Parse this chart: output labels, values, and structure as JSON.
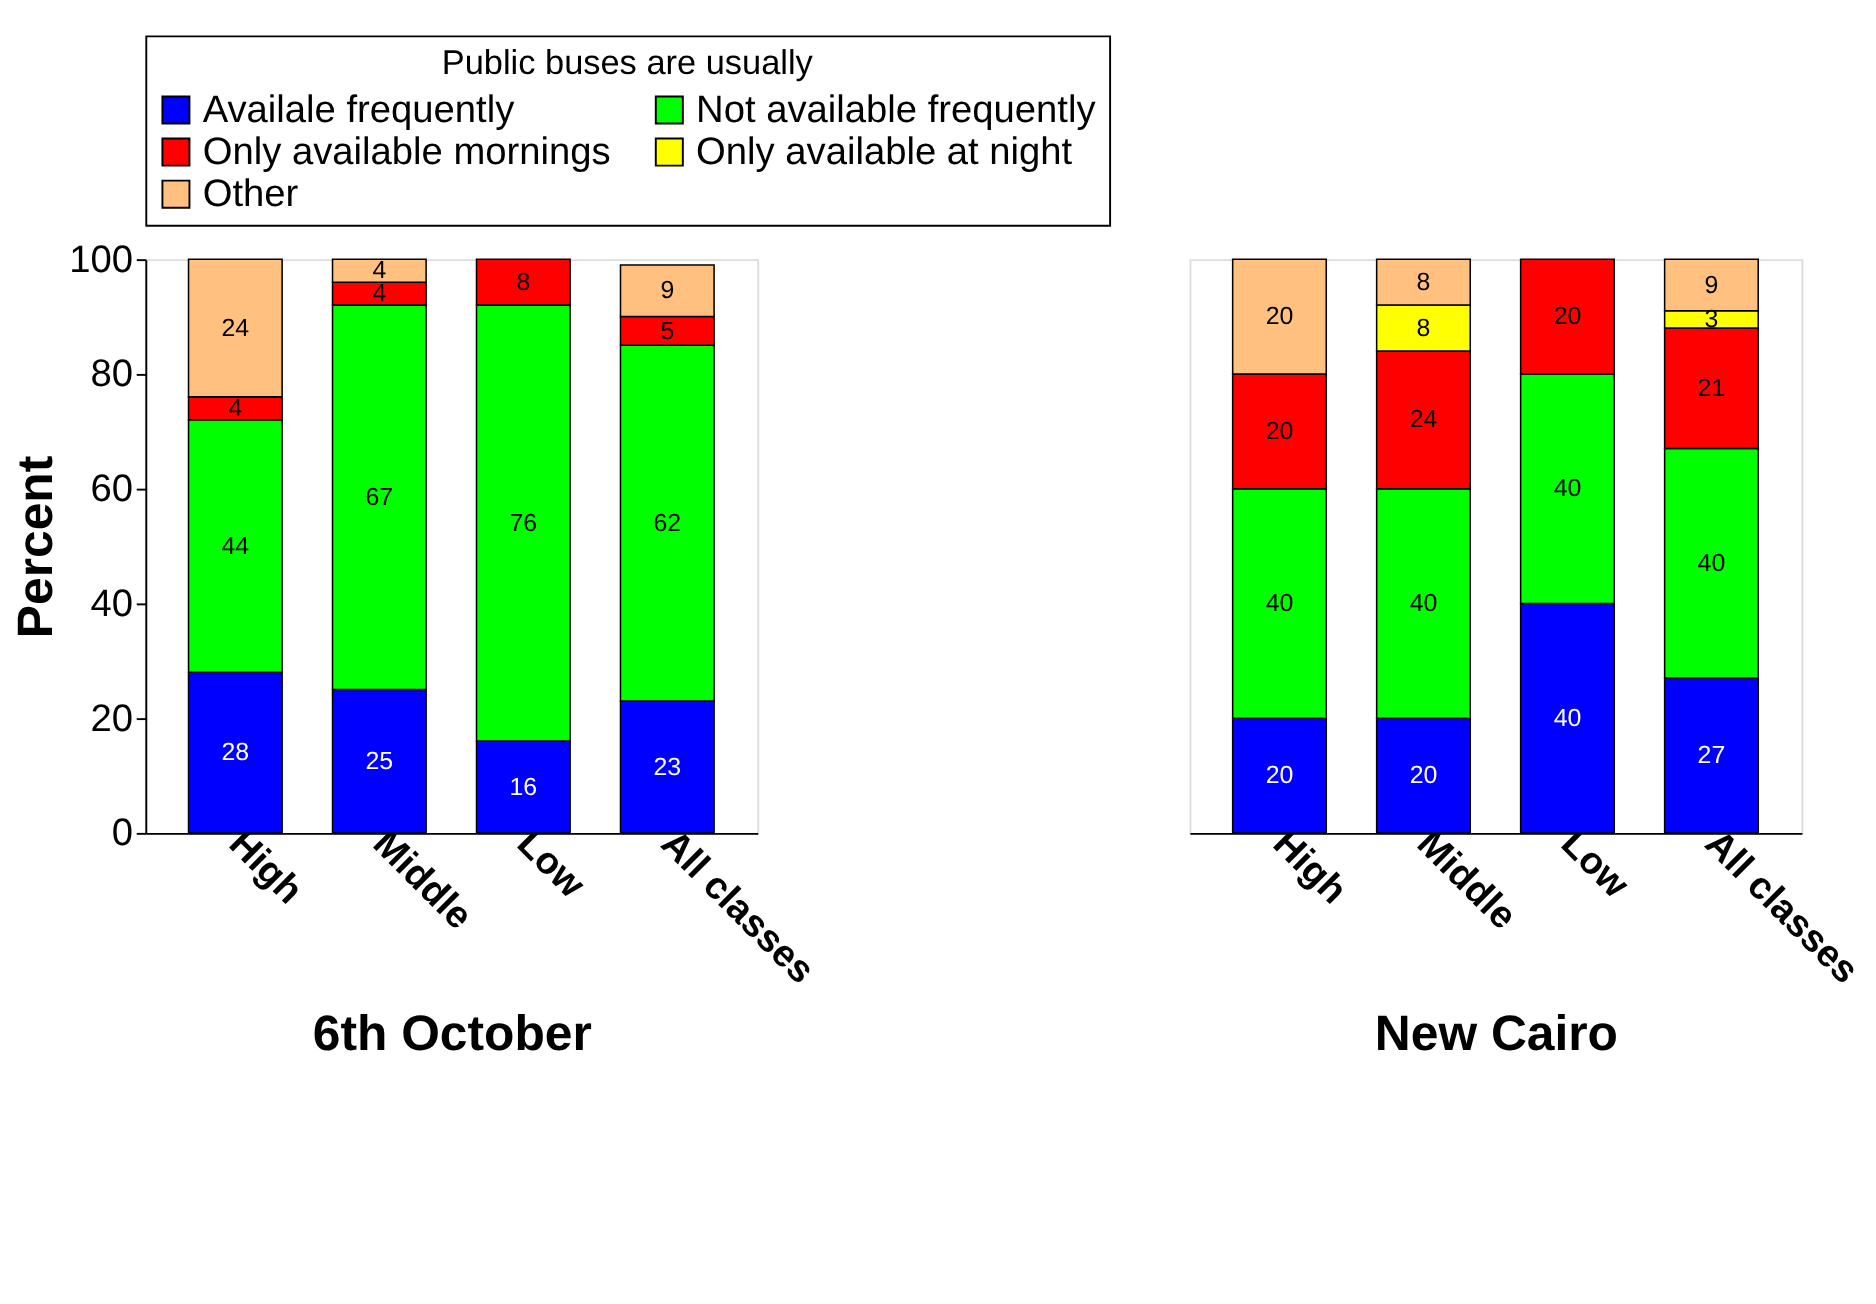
{
  "chart_data": [
    {
      "type": "bar",
      "stacked": true,
      "xlabel": "6th October",
      "ylabel": "Percent",
      "legend_title": "Public buses are usually",
      "legend": "top",
      "data_labels": true,
      "grid": false,
      "ylim": [
        0,
        100
      ],
      "yticks": [
        0,
        20,
        40,
        60,
        80,
        100
      ],
      "categories": [
        "High",
        "Middle",
        "Low",
        "All classes"
      ],
      "series": [
        {
          "name": "Availale frequently",
          "color": "#0000ff",
          "values": [
            28,
            25,
            16,
            23
          ]
        },
        {
          "name": "Not available frequently",
          "color": "#00ff00",
          "values": [
            44,
            67,
            76,
            62
          ]
        },
        {
          "name": "Only available mornings",
          "color": "#ff0000",
          "values": [
            4,
            4,
            8,
            5
          ]
        },
        {
          "name": "Only available at night",
          "color": "#ffff00",
          "values": [
            null,
            null,
            null,
            null
          ]
        },
        {
          "name": "Other",
          "color": "#ffc080",
          "values": [
            24,
            4,
            null,
            9
          ]
        }
      ]
    },
    {
      "type": "bar",
      "stacked": true,
      "xlabel": "New Cairo",
      "data_labels": true,
      "grid": false,
      "tick_labels": "x",
      "ylim": [
        0,
        100
      ],
      "yticks": [
        0,
        20,
        40,
        60,
        80,
        100
      ],
      "categories": [
        "High",
        "Middle",
        "Low",
        "All classes"
      ],
      "series": [
        {
          "color": "#0000ff",
          "values": [
            20,
            20,
            40,
            27
          ]
        },
        {
          "color": "#00ff00",
          "values": [
            40,
            40,
            40,
            40
          ]
        },
        {
          "color": "#ff0000",
          "values": [
            20,
            24,
            20,
            21
          ]
        },
        {
          "color": "#ffff00",
          "values": [
            null,
            8,
            null,
            3
          ]
        },
        {
          "color": "#ffc080",
          "values": [
            20,
            8,
            null,
            9
          ]
        }
      ]
    }
  ]
}
